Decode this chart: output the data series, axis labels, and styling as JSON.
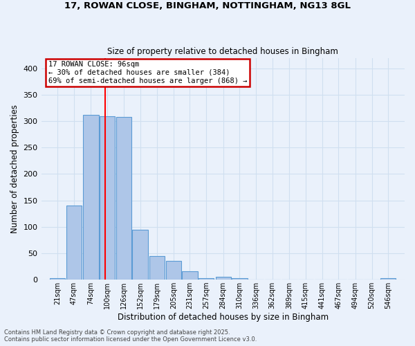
{
  "title1": "17, ROWAN CLOSE, BINGHAM, NOTTINGHAM, NG13 8GL",
  "title2": "Size of property relative to detached houses in Bingham",
  "xlabel": "Distribution of detached houses by size in Bingham",
  "ylabel": "Number of detached properties",
  "footnote1": "Contains HM Land Registry data © Crown copyright and database right 2025.",
  "footnote2": "Contains public sector information licensed under the Open Government Licence v3.0.",
  "bar_labels": [
    "21sqm",
    "47sqm",
    "74sqm",
    "100sqm",
    "126sqm",
    "152sqm",
    "179sqm",
    "205sqm",
    "231sqm",
    "257sqm",
    "284sqm",
    "310sqm",
    "336sqm",
    "362sqm",
    "389sqm",
    "415sqm",
    "441sqm",
    "467sqm",
    "494sqm",
    "520sqm",
    "546sqm"
  ],
  "bar_values": [
    3,
    140,
    312,
    310,
    308,
    94,
    45,
    35,
    16,
    3,
    6,
    3,
    0,
    0,
    0,
    0,
    0,
    0,
    0,
    0,
    3
  ],
  "bar_color": "#aec6e8",
  "bar_edgecolor": "#5b9bd5",
  "background_color": "#eaf1fb",
  "grid_color": "#d0dff0",
  "redline_x": 96,
  "annotation_text": "17 ROWAN CLOSE: 96sqm\n← 30% of detached houses are smaller (384)\n69% of semi-detached houses are larger (868) →",
  "annotation_box_color": "#ffffff",
  "annotation_box_edgecolor": "#cc0000",
  "ylim": [
    0,
    420
  ],
  "bin_width": 26,
  "yticks": [
    0,
    50,
    100,
    150,
    200,
    250,
    300,
    350,
    400
  ]
}
